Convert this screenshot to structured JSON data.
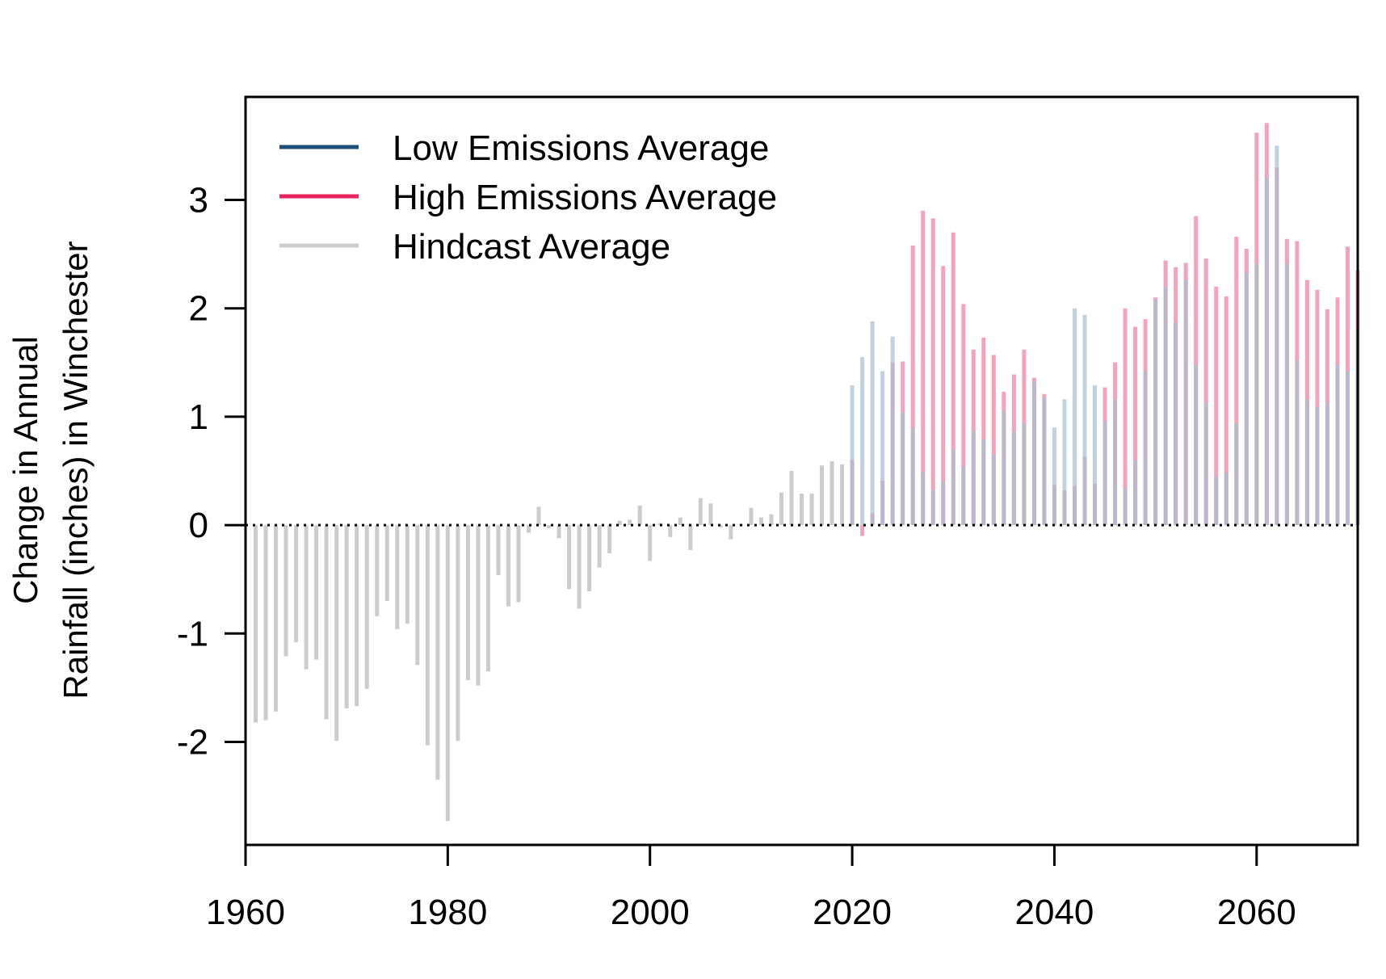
{
  "chart_data": {
    "type": "bar",
    "title": "",
    "xlabel": "",
    "ylabel_lines": [
      "Change in Annual",
      "Rainfall (inches) in Winchester"
    ],
    "xlim": [
      1960,
      2070
    ],
    "ylim": [
      -2.95,
      3.95
    ],
    "x_ticks": [
      1960,
      1980,
      2000,
      2020,
      2040,
      2060
    ],
    "y_ticks": [
      -2,
      -1,
      0,
      1,
      2,
      3
    ],
    "legend_position": "top-left",
    "reference_line": {
      "y": 0,
      "style": "dotted"
    },
    "series": [
      {
        "name": "Low Emissions Average",
        "color": "#1f4e79",
        "bar_color": "#a7bfd3",
        "x": [
          2020,
          2021,
          2022,
          2023,
          2024,
          2025,
          2026,
          2027,
          2028,
          2029,
          2030,
          2031,
          2032,
          2033,
          2034,
          2035,
          2036,
          2037,
          2038,
          2039,
          2040,
          2041,
          2042,
          2043,
          2044,
          2045,
          2046,
          2047,
          2048,
          2049,
          2050,
          2051,
          2052,
          2053,
          2054,
          2055,
          2056,
          2057,
          2058,
          2059,
          2060,
          2061,
          2062,
          2063,
          2064,
          2065,
          2066,
          2067,
          2068,
          2069,
          2070
        ],
        "values": [
          1.29,
          1.55,
          1.88,
          1.42,
          1.74,
          1.04,
          0.9,
          0.49,
          0.33,
          0.4,
          0.7,
          0.54,
          0.87,
          0.79,
          0.65,
          1.05,
          0.86,
          0.94,
          1.32,
          1.18,
          0.9,
          1.16,
          2.0,
          1.94,
          1.29,
          0.96,
          1.16,
          0.34,
          0.6,
          1.42,
          2.08,
          2.2,
          1.87,
          2.26,
          1.48,
          1.13,
          0.45,
          0.48,
          0.94,
          2.33,
          2.41,
          3.21,
          3.5,
          2.41,
          1.52,
          1.16,
          1.09,
          1.13,
          1.48,
          1.42,
          1.8
        ]
      },
      {
        "name": "High Emissions Average",
        "color": "#e8235d",
        "bar_color": "#f5a3bb",
        "x": [
          2020,
          2021,
          2022,
          2023,
          2024,
          2025,
          2026,
          2027,
          2028,
          2029,
          2030,
          2031,
          2032,
          2033,
          2034,
          2035,
          2036,
          2037,
          2038,
          2039,
          2040,
          2041,
          2042,
          2043,
          2044,
          2045,
          2046,
          2047,
          2048,
          2049,
          2050,
          2051,
          2052,
          2053,
          2054,
          2055,
          2056,
          2057,
          2058,
          2059,
          2060,
          2061,
          2062,
          2063,
          2064,
          2065,
          2066,
          2067,
          2068,
          2069,
          2070
        ],
        "values": [
          0.6,
          -0.1,
          0.11,
          0.41,
          1.5,
          1.51,
          2.58,
          2.9,
          2.83,
          2.39,
          2.7,
          2.04,
          1.62,
          1.73,
          1.57,
          1.23,
          1.39,
          1.62,
          1.36,
          1.21,
          0.37,
          0.32,
          0.36,
          0.63,
          0.38,
          1.27,
          1.5,
          2.0,
          1.83,
          1.9,
          2.1,
          2.44,
          2.38,
          2.42,
          2.85,
          2.46,
          2.2,
          2.11,
          2.66,
          2.55,
          3.62,
          3.71,
          3.3,
          2.64,
          2.62,
          2.26,
          2.17,
          1.99,
          2.1,
          2.57,
          2.35
        ]
      },
      {
        "name": "Hindcast Average",
        "color": "#cccccc",
        "bar_color": "#cccccc",
        "x": [
          1961,
          1962,
          1963,
          1964,
          1965,
          1966,
          1967,
          1968,
          1969,
          1970,
          1971,
          1972,
          1973,
          1974,
          1975,
          1976,
          1977,
          1978,
          1979,
          1980,
          1981,
          1982,
          1983,
          1984,
          1985,
          1986,
          1987,
          1988,
          1989,
          1990,
          1991,
          1992,
          1993,
          1994,
          1995,
          1996,
          1997,
          1998,
          1999,
          2000,
          2001,
          2002,
          2003,
          2004,
          2005,
          2006,
          2007,
          2008,
          2009,
          2010,
          2011,
          2012,
          2013,
          2014,
          2015,
          2016,
          2017,
          2018,
          2019
        ],
        "values": [
          -1.82,
          -1.8,
          -1.72,
          -1.21,
          -1.08,
          -1.33,
          -1.24,
          -1.79,
          -1.99,
          -1.69,
          -1.67,
          -1.51,
          -0.84,
          -0.7,
          -0.96,
          -0.91,
          -1.29,
          -2.03,
          -2.35,
          -2.73,
          -1.99,
          -1.43,
          -1.48,
          -1.35,
          -0.46,
          -0.75,
          -0.71,
          -0.07,
          0.17,
          -0.03,
          -0.12,
          -0.59,
          -0.77,
          -0.61,
          -0.39,
          -0.26,
          0.04,
          0.05,
          0.18,
          -0.33,
          0.02,
          -0.11,
          0.07,
          -0.23,
          0.25,
          0.2,
          -0.02,
          -0.13,
          0.01,
          0.16,
          0.07,
          0.1,
          0.3,
          0.5,
          0.29,
          0.29,
          0.55,
          0.59,
          0.56
        ]
      }
    ]
  }
}
